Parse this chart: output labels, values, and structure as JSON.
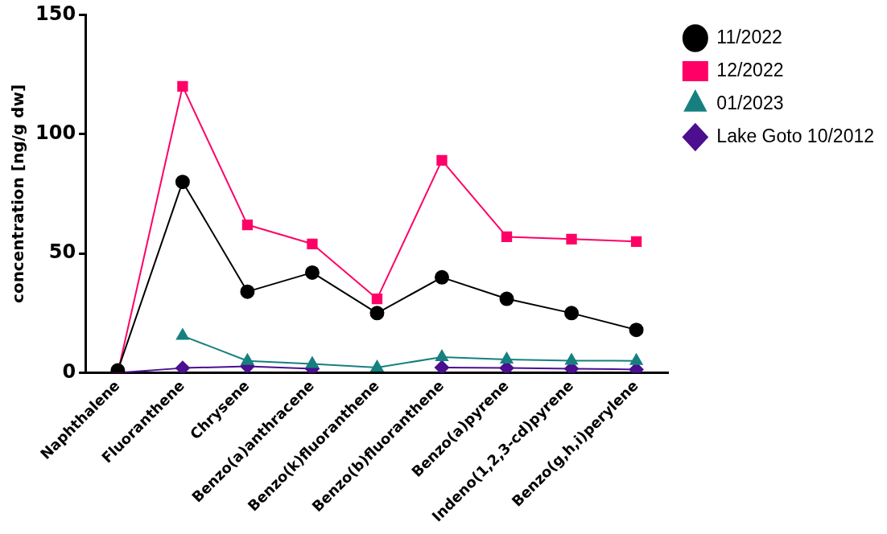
{
  "chart_data": {
    "type": "line",
    "ylabel": "concentration [ng/g dw]",
    "categories": [
      "Naphthalene",
      "Fluoranthene",
      "Chrysene",
      "Benzo(a)anthracene",
      "Benzo(k)fluoranthene",
      "Benzo(b)fluoranthene",
      "Benzo(a)pyrene",
      "Indeno(1,2,3-cd)pyrene",
      "Benzo(g,h,i)perylene"
    ],
    "series": [
      {
        "name": "11/2022",
        "color": "#000000",
        "marker": "circle",
        "values": [
          1,
          80,
          34,
          42,
          25,
          40,
          31,
          25,
          18
        ]
      },
      {
        "name": "12/2022",
        "color": "#ff0066",
        "marker": "square",
        "values": [
          0,
          120,
          62,
          54,
          31,
          89,
          57,
          56,
          55
        ]
      },
      {
        "name": "01/2023",
        "color": "#168080",
        "marker": "triangle",
        "values": [
          null,
          15.5,
          5,
          3.7,
          2.2,
          6.6,
          5.6,
          5.1,
          5
        ]
      },
      {
        "name": "Lake Goto 10/2012",
        "color": "#4b0f8f",
        "marker": "diamond",
        "values": [
          0,
          2,
          2.7,
          1.7,
          null,
          2.2,
          2,
          1.7,
          1.4
        ]
      }
    ],
    "ylim": [
      0,
      150
    ],
    "yticks": [
      0,
      50,
      100,
      150
    ],
    "grid": false,
    "legend": "top right",
    "line_style": "solid"
  }
}
